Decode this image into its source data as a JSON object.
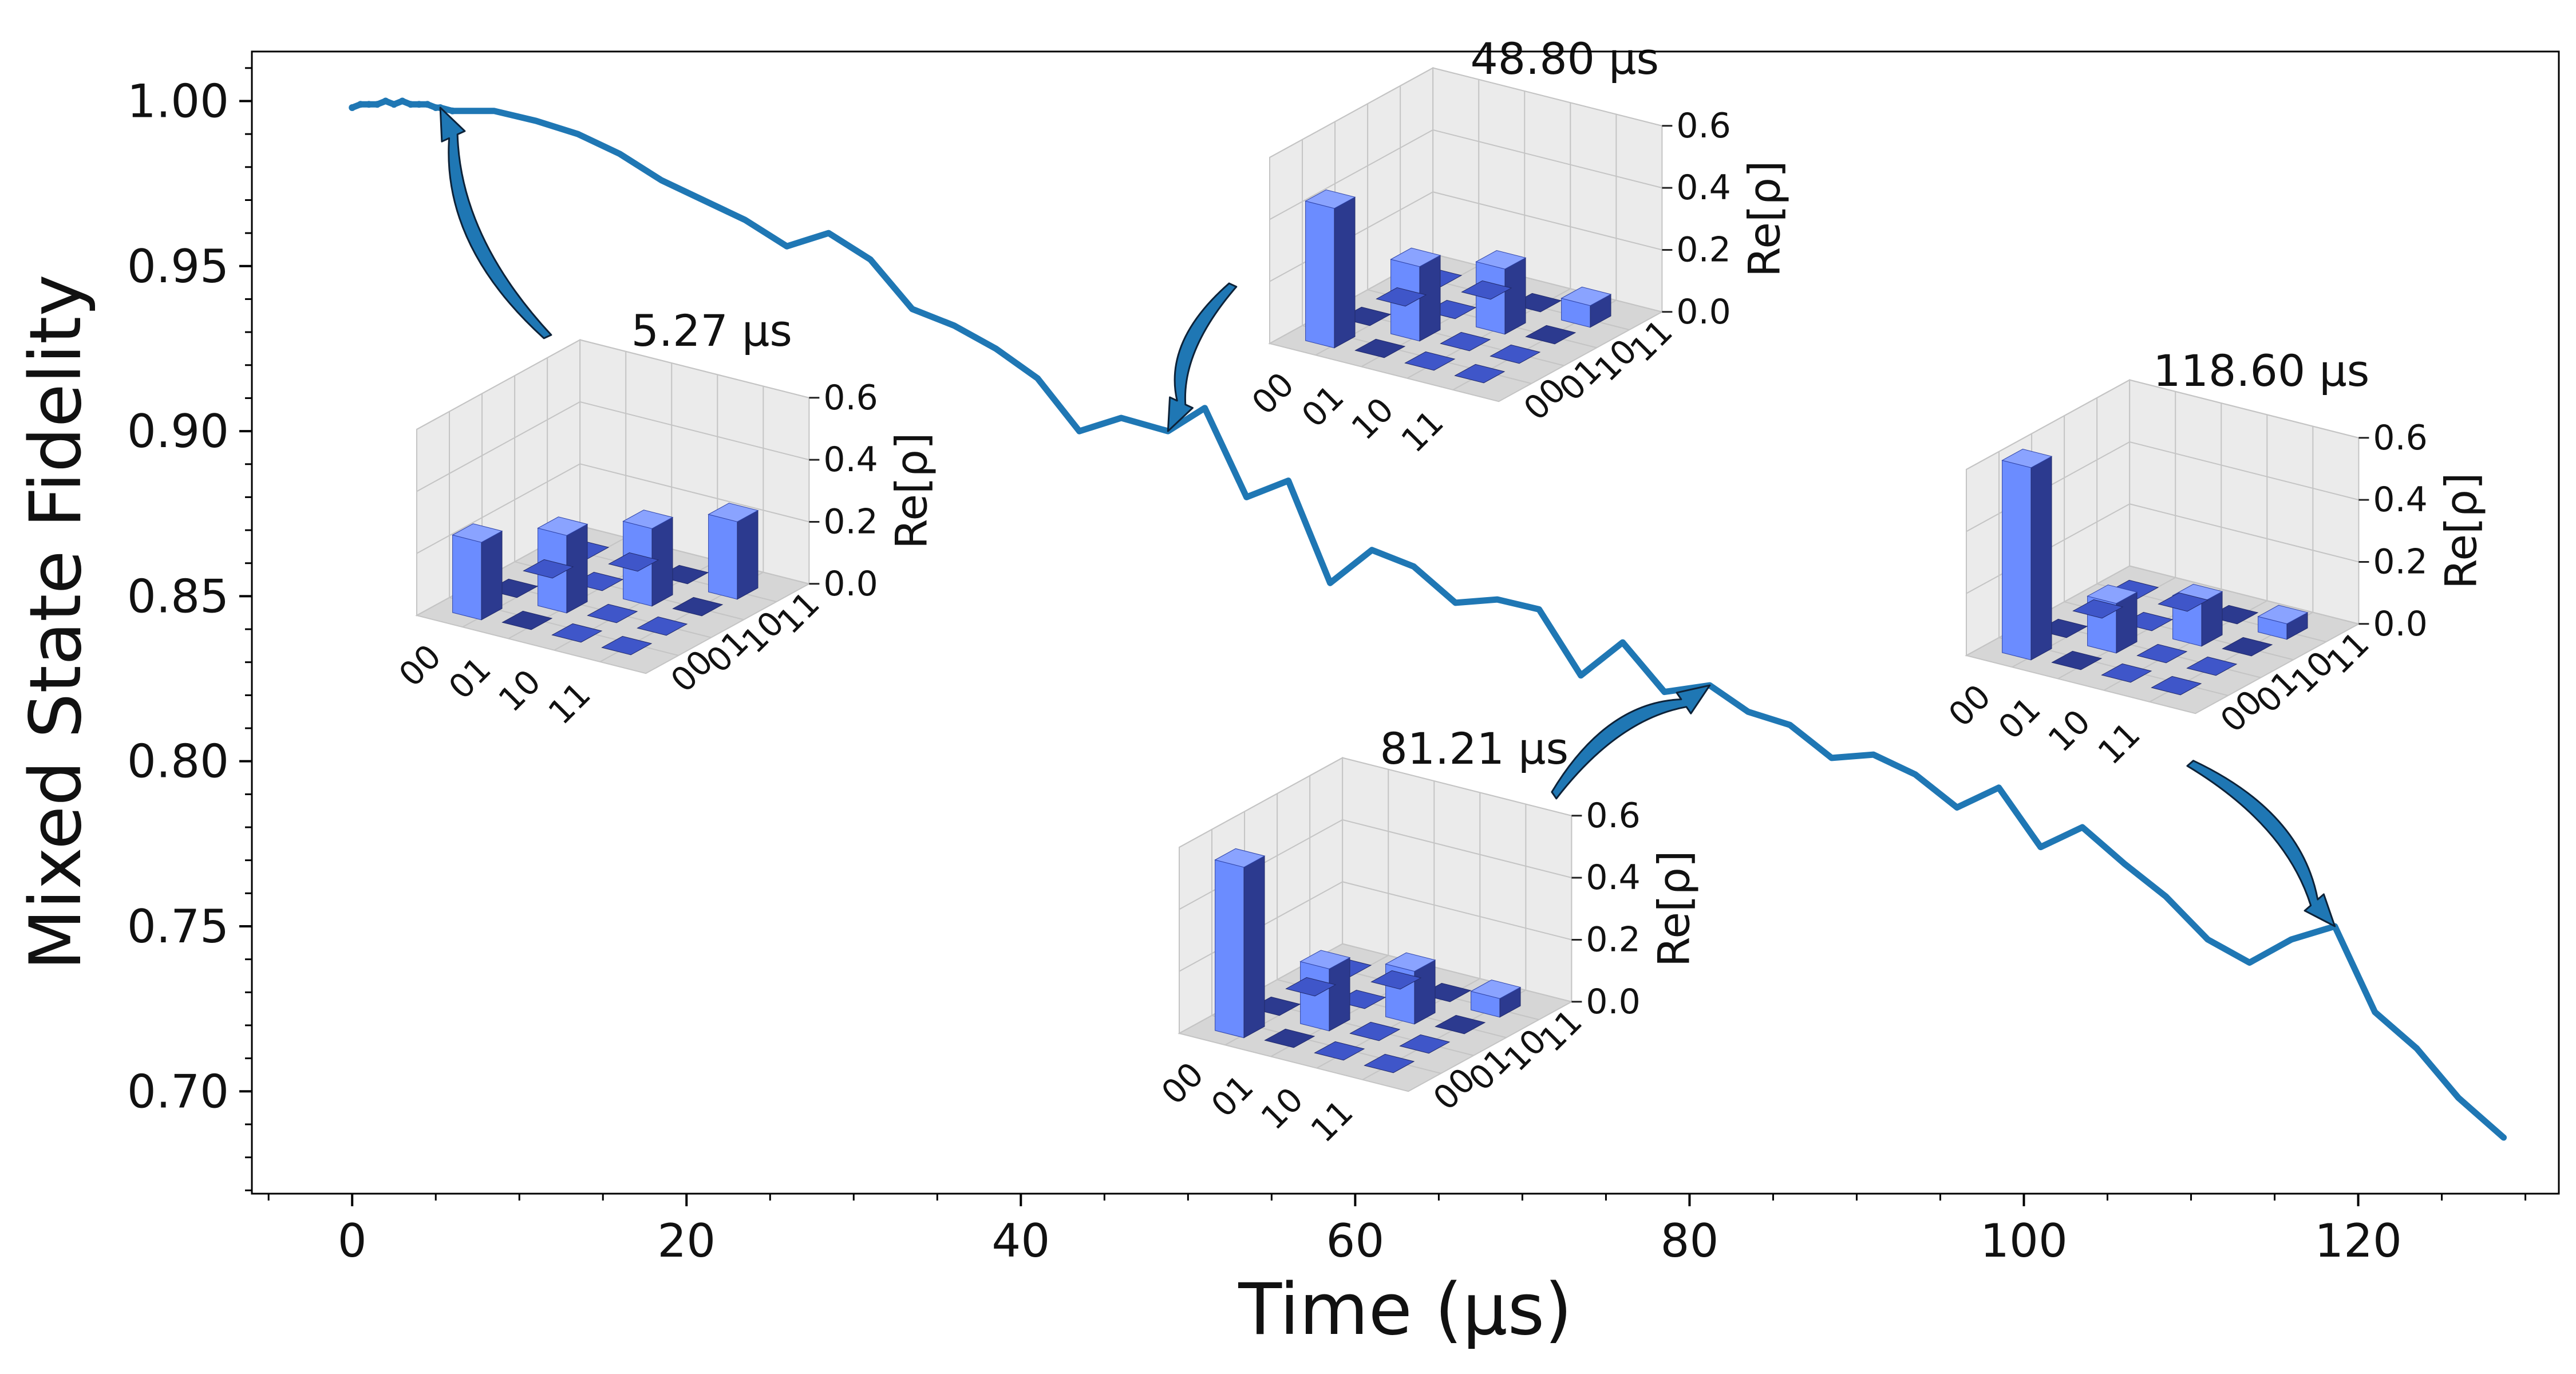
{
  "chart_data": {
    "type": "line",
    "title": "",
    "xlabel": "Time (μs)",
    "ylabel": "Mixed State Fidelity",
    "xlim": [
      -6,
      132
    ],
    "ylim": [
      0.669,
      1.015
    ],
    "xticks": [
      0,
      20,
      40,
      60,
      80,
      100,
      120
    ],
    "xtick_labels": [
      "0",
      "20",
      "40",
      "60",
      "80",
      "100",
      "120"
    ],
    "yticks": [
      0.7,
      0.75,
      0.8,
      0.85,
      0.9,
      0.95,
      1.0
    ],
    "ytick_labels": [
      "0.70",
      "0.75",
      "0.80",
      "0.85",
      "0.90",
      "0.95",
      "1.00"
    ],
    "grid": false,
    "line_color": "#1f77b4",
    "series": [
      {
        "name": "Mixed State Fidelity",
        "x": [
          0,
          0.5,
          1,
          1.5,
          2,
          2.5,
          3,
          3.5,
          4,
          4.5,
          5,
          5.27,
          6,
          8.5,
          11,
          13.5,
          16,
          18.5,
          21,
          23.5,
          26,
          28.5,
          31,
          33.5,
          36,
          38.5,
          41,
          43.5,
          46,
          48.8,
          51,
          53.5,
          56,
          58.5,
          61,
          63.5,
          66,
          68.5,
          71,
          73.5,
          76,
          78.5,
          81.21,
          83.5,
          86,
          88.5,
          91,
          93.5,
          96,
          98.5,
          101,
          103.5,
          106,
          108.5,
          111,
          113.5,
          116,
          118.6,
          121,
          123.5,
          126,
          128.7
        ],
        "y": [
          0.998,
          0.999,
          0.999,
          0.999,
          1.0,
          0.999,
          1.0,
          0.999,
          0.999,
          0.999,
          0.998,
          0.998,
          0.997,
          0.997,
          0.994,
          0.99,
          0.984,
          0.976,
          0.97,
          0.964,
          0.956,
          0.96,
          0.952,
          0.937,
          0.932,
          0.925,
          0.916,
          0.9,
          0.904,
          0.9,
          0.907,
          0.88,
          0.885,
          0.854,
          0.864,
          0.859,
          0.848,
          0.849,
          0.846,
          0.826,
          0.836,
          0.821,
          0.823,
          0.815,
          0.811,
          0.801,
          0.802,
          0.796,
          0.786,
          0.792,
          0.774,
          0.78,
          0.769,
          0.759,
          0.746,
          0.739,
          0.746,
          0.75,
          0.724,
          0.713,
          0.698,
          0.686
        ]
      }
    ],
    "insets": [
      {
        "time_label": "5.27 μs",
        "zlabel": "Re[ρ]",
        "zticks": [
          "0.0",
          "0.2",
          "0.4",
          "0.6"
        ],
        "row_labels": [
          "00",
          "01",
          "10",
          "11"
        ],
        "col_labels": [
          "00",
          "01",
          "10",
          "11"
        ],
        "diagonal": [
          0.25,
          0.25,
          0.25,
          0.25
        ],
        "points_to": [
          5.27,
          0.998
        ]
      },
      {
        "time_label": "48.80 μs",
        "zlabel": "Re[ρ]",
        "zticks": [
          "0.0",
          "0.2",
          "0.4",
          "0.6"
        ],
        "row_labels": [
          "00",
          "01",
          "10",
          "11"
        ],
        "col_labels": [
          "00",
          "01",
          "10",
          "11"
        ],
        "diagonal": [
          0.45,
          0.24,
          0.21,
          0.07
        ],
        "points_to": [
          48.8,
          0.9
        ]
      },
      {
        "time_label": "81.21 μs",
        "zlabel": "Re[ρ]",
        "zticks": [
          "0.0",
          "0.2",
          "0.4",
          "0.6"
        ],
        "row_labels": [
          "00",
          "01",
          "10",
          "11"
        ],
        "col_labels": [
          "00",
          "01",
          "10",
          "11"
        ],
        "diagonal": [
          0.55,
          0.2,
          0.17,
          0.06
        ],
        "points_to": [
          81.21,
          0.823
        ]
      },
      {
        "time_label": "118.60 μs",
        "zlabel": "Re[ρ]",
        "zticks": [
          "0.0",
          "0.2",
          "0.4",
          "0.6"
        ],
        "row_labels": [
          "00",
          "01",
          "10",
          "11"
        ],
        "col_labels": [
          "00",
          "01",
          "10",
          "11"
        ],
        "diagonal": [
          0.62,
          0.16,
          0.14,
          0.05
        ],
        "points_to": [
          118.6,
          0.75
        ]
      }
    ],
    "colors": {
      "bar_light": "#6b8cff",
      "bar_side": "#3f56c9",
      "bar_dark": "#2c3a8f",
      "pane": "#ebebeb",
      "floor": "#d6d6d6",
      "grid": "#c4c4c4"
    }
  }
}
